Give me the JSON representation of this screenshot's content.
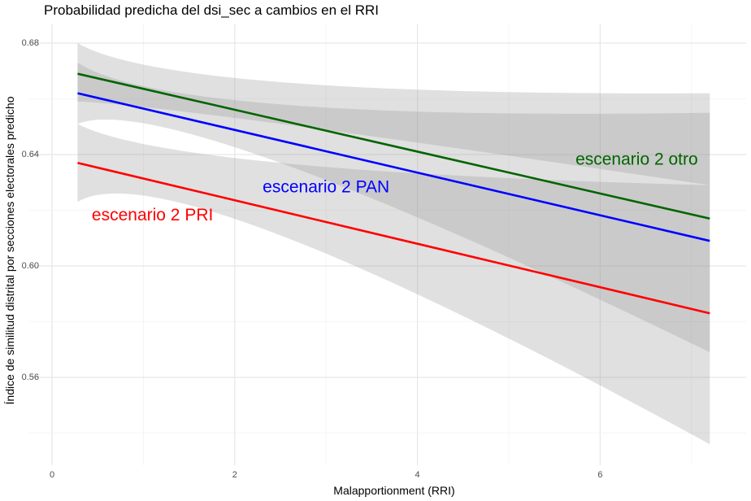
{
  "chart_data": {
    "type": "line",
    "title": "Probabilidad predicha del dsi_sec a cambios en el RRI",
    "xlabel": "Malapportionment (RRI)",
    "ylabel": "Índice de similitud distrital por secciones electorales predicho",
    "xlim": [
      0,
      7.5
    ],
    "ylim": [
      0.53,
      0.685
    ],
    "x_ticks": [
      0,
      2,
      4,
      6
    ],
    "x_tick_labels": [
      "0",
      "2",
      "4",
      "6"
    ],
    "y_ticks": [
      0.56,
      0.6,
      0.64,
      0.68
    ],
    "y_tick_labels": [
      "0.56",
      "0.60",
      "0.64",
      "0.68"
    ],
    "grid": true,
    "legend": "none",
    "series": [
      {
        "name": "escenario 2 otro",
        "color": "#006400",
        "x": [
          0.28,
          7.2
        ],
        "values": [
          0.669,
          0.617
        ],
        "ci_lower": [
          0.659,
          0.629
        ],
        "ci_upper": [
          0.68,
          0.662
        ],
        "ci_mid_x": 2.5,
        "ci_mid_lower": 0.651,
        "ci_mid_upper": 0.666
      },
      {
        "name": "escenario 2 PAN",
        "color": "#0000ff",
        "x": [
          0.28,
          7.2
        ],
        "values": [
          0.662,
          0.609
        ],
        "ci_lower": [
          0.651,
          0.569
        ],
        "ci_upper": [
          0.673,
          0.655
        ],
        "ci_mid_x": 2.5,
        "ci_mid_lower": 0.637,
        "ci_mid_upper": 0.658
      },
      {
        "name": "escenario 2 PRI",
        "color": "#ff0000",
        "x": [
          0.28,
          7.2
        ],
        "values": [
          0.637,
          0.583
        ],
        "ci_lower": [
          0.623,
          0.536
        ],
        "ci_upper": [
          0.651,
          0.629
        ],
        "ci_mid_x": 2.5,
        "ci_mid_lower": 0.611,
        "ci_mid_upper": 0.637
      }
    ],
    "annotations": [
      {
        "text": "escenario 2 otro",
        "x": 6.4,
        "y": 0.638,
        "color": "#006400"
      },
      {
        "text": "escenario 2 PAN",
        "x": 3.0,
        "y": 0.628,
        "color": "#0000ff"
      },
      {
        "text": "escenario 2 PRI",
        "x": 1.1,
        "y": 0.618,
        "color": "#ff0000"
      }
    ]
  }
}
